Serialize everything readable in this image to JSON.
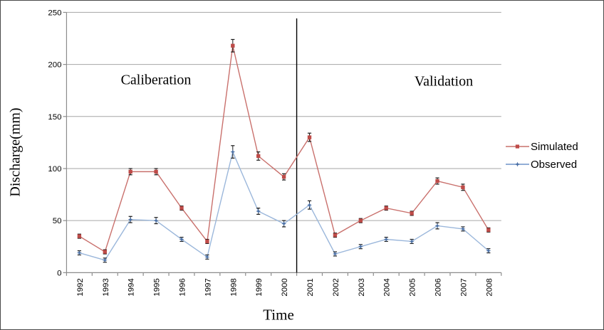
{
  "chart_data": {
    "type": "line",
    "title": "",
    "xlabel": "Time",
    "ylabel": "Discharge(mm)",
    "ylim": [
      0,
      250
    ],
    "yticks": [
      0,
      50,
      100,
      150,
      200,
      250
    ],
    "grid": "horizontal",
    "legend_position": "right",
    "categories": [
      "1992",
      "1993",
      "1994",
      "1995",
      "1996",
      "1997",
      "1998",
      "1999",
      "2000",
      "2001",
      "2002",
      "2003",
      "2004",
      "2005",
      "2006",
      "2007",
      "2008"
    ],
    "annotations": [
      {
        "text": "Caliberation",
        "region": "1992-2000"
      },
      {
        "text": "Validation",
        "region": "2001-2008"
      }
    ],
    "divider_between": [
      "2000",
      "2001"
    ],
    "series": [
      {
        "name": "Simulated",
        "marker": "square",
        "color": "#BE4B48",
        "line_color": "#C9706C",
        "values": [
          35,
          20,
          97,
          97,
          62,
          30,
          218,
          112,
          92,
          130,
          36,
          50,
          62,
          57,
          88,
          82,
          41
        ],
        "errors": [
          2,
          2,
          3,
          3,
          2,
          2,
          6,
          4,
          3,
          4,
          2,
          2,
          2,
          2,
          3,
          3,
          2
        ]
      },
      {
        "name": "Observed",
        "marker": "star",
        "color": "#4A6FA5",
        "line_color": "#9BB7DB",
        "values": [
          19,
          12,
          51,
          50,
          32,
          15,
          116,
          59,
          47,
          65,
          18,
          25,
          32,
          30,
          45,
          42,
          21
        ],
        "errors": [
          2,
          2,
          3,
          3,
          2,
          2,
          6,
          3,
          3,
          4,
          2,
          2,
          2,
          2,
          3,
          2,
          2
        ]
      }
    ],
    "colors": {
      "gridline": "#A6A6A6",
      "axis": "#8C8C8C",
      "error_bar": "#1a1a1a",
      "divider": "#000000",
      "text": "#000000"
    }
  }
}
